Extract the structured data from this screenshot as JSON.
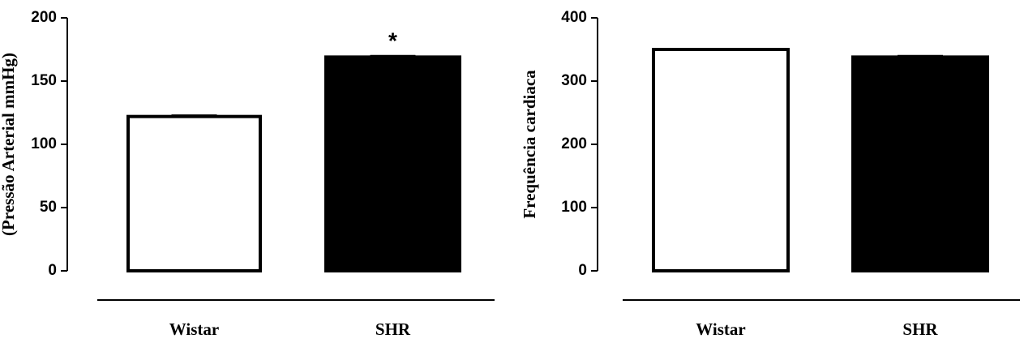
{
  "chart_data": [
    {
      "type": "bar",
      "ylabel": "(Pressão Arterial mmHg)",
      "categories": [
        "Wistar",
        "SHR"
      ],
      "values": [
        122,
        169
      ],
      "errors": [
        1,
        1
      ],
      "colors": [
        "#ffffff",
        "#000000"
      ],
      "ylim": [
        0,
        200
      ],
      "yticks": [
        0,
        50,
        100,
        150,
        200
      ],
      "annotation": "*"
    },
    {
      "type": "bar",
      "ylabel": "Frequência cardiaca",
      "categories": [
        "Wistar",
        "SHR"
      ],
      "values": [
        350,
        338
      ],
      "errors": [
        1,
        2
      ],
      "colors": [
        "#ffffff",
        "#000000"
      ],
      "ylim": [
        0,
        400
      ],
      "yticks": [
        0,
        100,
        200,
        300,
        400
      ]
    }
  ]
}
